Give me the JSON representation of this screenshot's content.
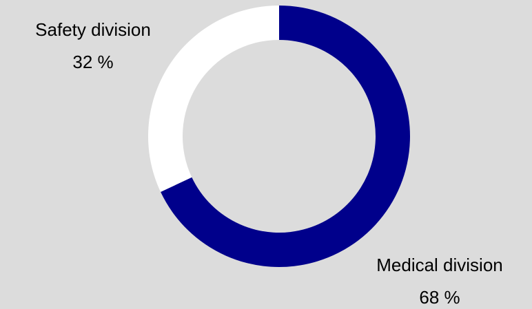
{
  "chart_data": {
    "type": "donut",
    "categories": [
      "Medical division",
      "Safety division"
    ],
    "values": [
      68,
      32
    ],
    "value_labels": [
      "68 %",
      "32 %"
    ],
    "colors": [
      "#00008b",
      "#ffffff"
    ]
  }
}
